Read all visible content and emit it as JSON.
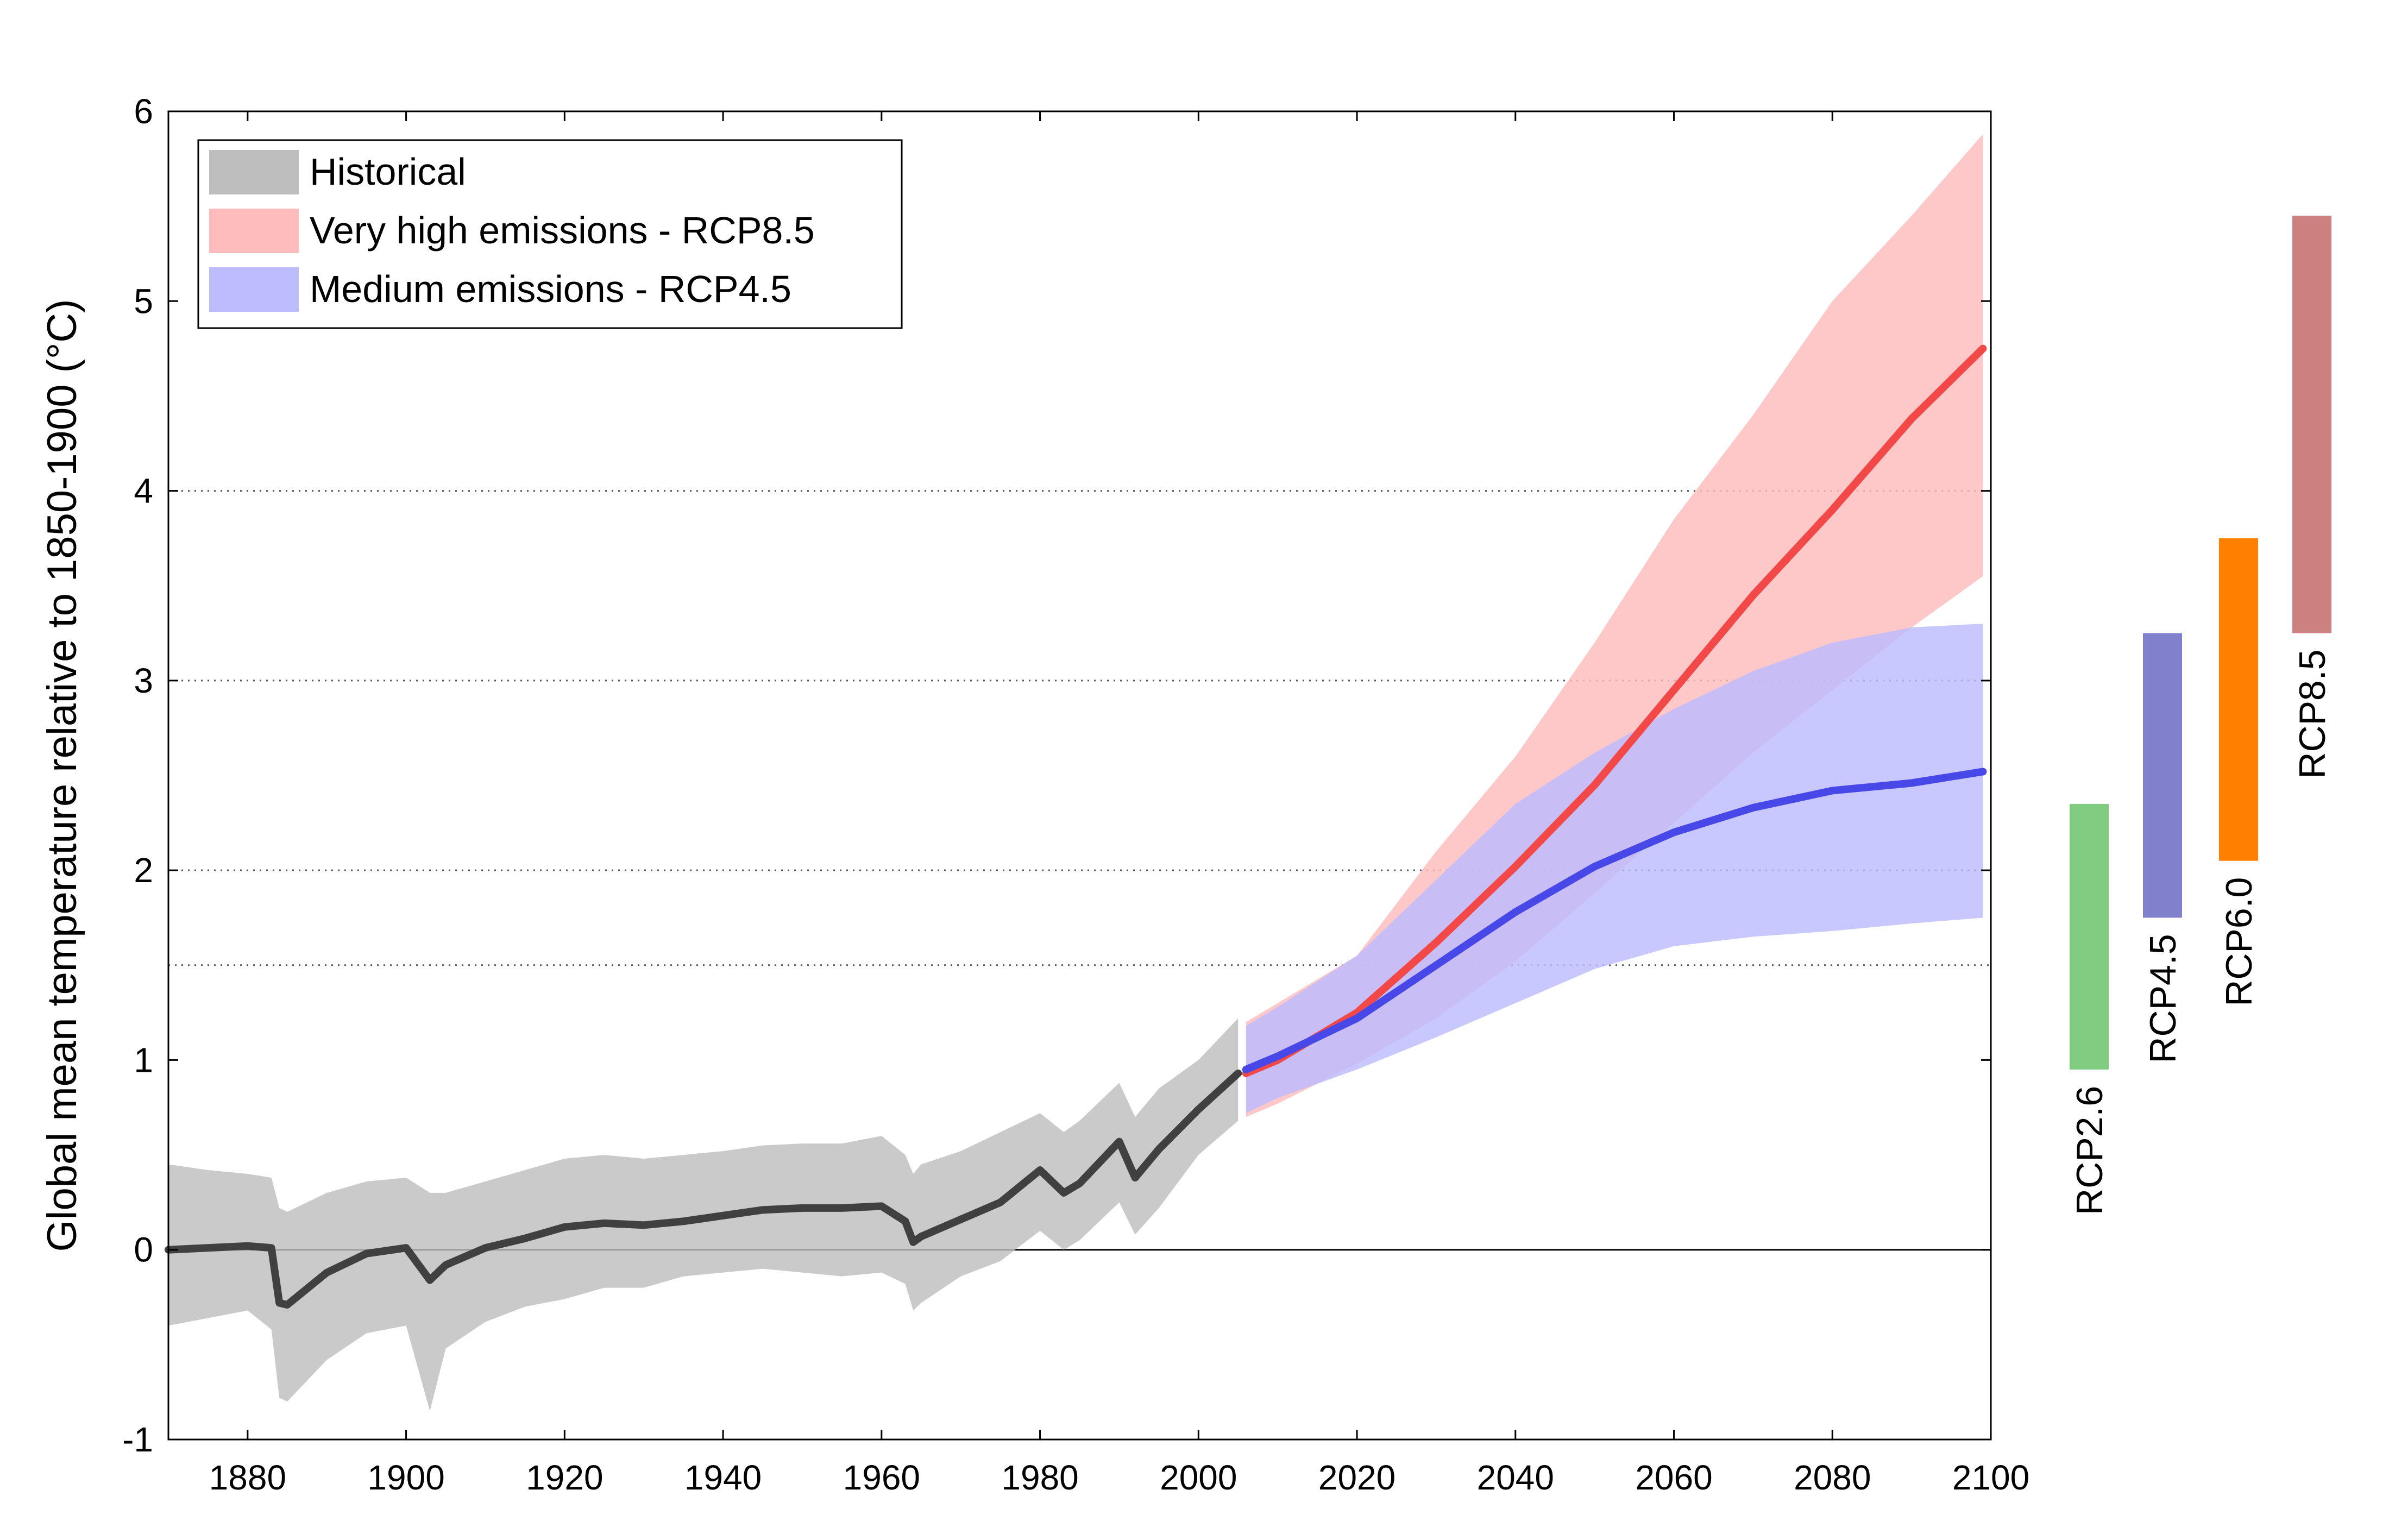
{
  "chart_data": {
    "type": "line",
    "title": "",
    "ylabel": "Global mean temperature relative to 1850-1900 (°C)",
    "xlabel": "",
    "xlim": [
      1870,
      2100
    ],
    "ylim": [
      -1,
      6
    ],
    "x_ticks": [
      1880,
      1900,
      1920,
      1940,
      1960,
      1980,
      2000,
      2020,
      2040,
      2060,
      2080,
      2100
    ],
    "y_ticks": [
      -1,
      0,
      1,
      2,
      3,
      4,
      5,
      6
    ],
    "reference_lines": [
      1.5,
      2,
      3,
      4
    ],
    "zero_line": 0,
    "legend": {
      "position": "top-left",
      "entries": [
        {
          "label": "Historical",
          "color": "#bebebe"
        },
        {
          "label": "Very high emissions - RCP8.5",
          "color": "#ffbcbc"
        },
        {
          "label": "Medium emissions - RCP4.5",
          "color": "#bcbcff"
        }
      ]
    },
    "series": [
      {
        "name": "Historical",
        "line_color": "#404040",
        "band_color": "#bebebe",
        "x": [
          1870,
          1875,
          1880,
          1883,
          1884,
          1885,
          1890,
          1895,
          1900,
          1903,
          1905,
          1910,
          1915,
          1920,
          1925,
          1930,
          1935,
          1940,
          1945,
          1950,
          1955,
          1960,
          1963,
          1964,
          1965,
          1970,
          1975,
          1980,
          1983,
          1985,
          1990,
          1992,
          1995,
          2000,
          2005
        ],
        "y": [
          0.0,
          0.01,
          0.02,
          0.01,
          -0.28,
          -0.29,
          -0.12,
          -0.02,
          0.01,
          -0.16,
          -0.08,
          0.01,
          0.06,
          0.12,
          0.14,
          0.13,
          0.15,
          0.18,
          0.21,
          0.22,
          0.22,
          0.23,
          0.15,
          0.04,
          0.07,
          0.16,
          0.25,
          0.42,
          0.3,
          0.35,
          0.57,
          0.38,
          0.53,
          0.74,
          0.93
        ],
        "lower": [
          -0.4,
          -0.36,
          -0.32,
          -0.42,
          -0.78,
          -0.8,
          -0.58,
          -0.44,
          -0.4,
          -0.85,
          -0.52,
          -0.38,
          -0.3,
          -0.26,
          -0.2,
          -0.2,
          -0.14,
          -0.12,
          -0.1,
          -0.12,
          -0.14,
          -0.12,
          -0.18,
          -0.32,
          -0.28,
          -0.14,
          -0.06,
          0.1,
          0.0,
          0.05,
          0.25,
          0.08,
          0.22,
          0.5,
          0.68
        ],
        "upper": [
          0.45,
          0.42,
          0.4,
          0.38,
          0.22,
          0.2,
          0.3,
          0.36,
          0.38,
          0.3,
          0.3,
          0.36,
          0.42,
          0.48,
          0.5,
          0.48,
          0.5,
          0.52,
          0.55,
          0.56,
          0.56,
          0.6,
          0.5,
          0.4,
          0.45,
          0.52,
          0.62,
          0.72,
          0.62,
          0.68,
          0.88,
          0.7,
          0.85,
          1.0,
          1.22
        ]
      },
      {
        "name": "Very high emissions - RCP8.5",
        "line_color": "#f34848",
        "band_color": "#ffbcbc",
        "x": [
          2006,
          2010,
          2020,
          2030,
          2040,
          2050,
          2060,
          2070,
          2080,
          2090,
          2099
        ],
        "y": [
          0.93,
          1.0,
          1.25,
          1.62,
          2.02,
          2.45,
          2.95,
          3.45,
          3.9,
          4.38,
          4.75
        ],
        "lower": [
          0.7,
          0.77,
          0.98,
          1.22,
          1.52,
          1.88,
          2.25,
          2.62,
          2.95,
          3.28,
          3.55
        ],
        "upper": [
          1.2,
          1.3,
          1.55,
          2.1,
          2.6,
          3.2,
          3.85,
          4.4,
          5.0,
          5.45,
          5.88
        ]
      },
      {
        "name": "Medium emissions - RCP4.5",
        "line_color": "#4848e8",
        "band_color": "#bcbcff",
        "x": [
          2006,
          2010,
          2020,
          2030,
          2040,
          2050,
          2060,
          2070,
          2080,
          2090,
          2099
        ],
        "y": [
          0.95,
          1.02,
          1.22,
          1.5,
          1.78,
          2.02,
          2.2,
          2.33,
          2.42,
          2.46,
          2.52
        ],
        "lower": [
          0.72,
          0.8,
          0.95,
          1.12,
          1.3,
          1.48,
          1.6,
          1.65,
          1.68,
          1.72,
          1.75
        ],
        "upper": [
          1.18,
          1.28,
          1.55,
          1.95,
          2.35,
          2.62,
          2.85,
          3.05,
          3.2,
          3.28,
          3.3
        ]
      }
    ],
    "range_bars": [
      {
        "label": "RCP2.6",
        "low": 0.95,
        "high": 2.35,
        "color": "#80cc80"
      },
      {
        "label": "RCP4.5",
        "low": 1.75,
        "high": 3.25,
        "color": "#8080cc"
      },
      {
        "label": "RCP6.0",
        "low": 2.05,
        "high": 3.75,
        "color": "#ff8000"
      },
      {
        "label": "RCP8.5",
        "low": 3.25,
        "high": 5.45,
        "color": "#cc8080"
      }
    ]
  }
}
